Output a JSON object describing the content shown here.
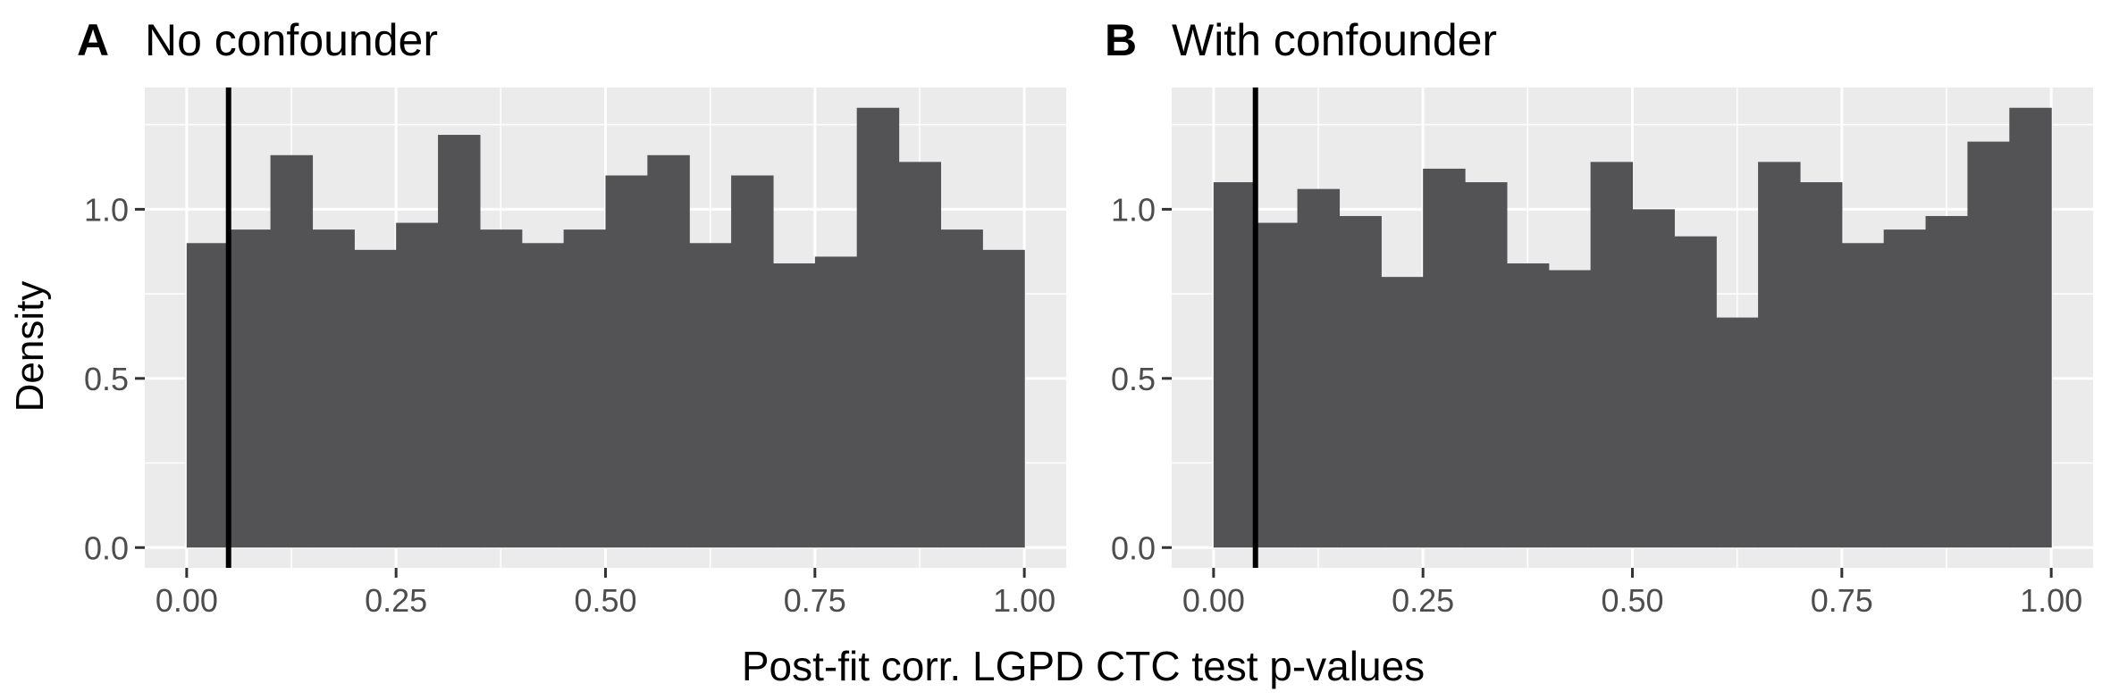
{
  "figure": {
    "ylabel": "Density",
    "xlabel": "Post-fit corr. LGPD CTC test p-values"
  },
  "colors": {
    "panel_bg": "#EBEBEB",
    "grid": "#FFFFFF",
    "bar": "#535254",
    "vline": "#000000",
    "tick_text": "#4D4D4D",
    "tick_mark": "#333333"
  },
  "chart_data": [
    {
      "type": "bar",
      "tag": "A",
      "title": "No confounder",
      "xlabel": "",
      "ylabel": "Density",
      "xlim": [
        -0.05,
        1.05
      ],
      "ylim": [
        -0.06,
        1.36
      ],
      "x_ticks": [
        0.0,
        0.25,
        0.5,
        0.75,
        1.0
      ],
      "x_tick_labels": [
        "0.00",
        "0.25",
        "0.50",
        "0.75",
        "1.00"
      ],
      "y_ticks": [
        0.0,
        0.5,
        1.0
      ],
      "y_tick_labels": [
        "0.0",
        "0.5",
        "1.0"
      ],
      "bin_width": 0.05,
      "bin_start": 0.0,
      "values": [
        0.9,
        0.94,
        1.16,
        0.94,
        0.88,
        0.96,
        1.22,
        0.94,
        0.9,
        0.94,
        1.1,
        1.16,
        0.9,
        1.1,
        0.84,
        0.86,
        1.3,
        1.14,
        0.94,
        0.88
      ],
      "vline": 0.05,
      "grid": true
    },
    {
      "type": "bar",
      "tag": "B",
      "title": "With confounder",
      "xlabel": "",
      "ylabel": "",
      "xlim": [
        -0.05,
        1.05
      ],
      "ylim": [
        -0.06,
        1.36
      ],
      "x_ticks": [
        0.0,
        0.25,
        0.5,
        0.75,
        1.0
      ],
      "x_tick_labels": [
        "0.00",
        "0.25",
        "0.50",
        "0.75",
        "1.00"
      ],
      "y_ticks": [
        0.0,
        0.5,
        1.0
      ],
      "y_tick_labels": [
        "0.0",
        "0.5",
        "1.0"
      ],
      "bin_width": 0.05,
      "bin_start": 0.0,
      "values": [
        1.08,
        0.96,
        1.06,
        0.98,
        0.8,
        1.12,
        1.08,
        0.84,
        0.82,
        1.14,
        1.0,
        0.92,
        0.68,
        1.14,
        1.08,
        0.9,
        0.94,
        0.98,
        1.2,
        1.3
      ],
      "vline": 0.05,
      "grid": true
    }
  ]
}
